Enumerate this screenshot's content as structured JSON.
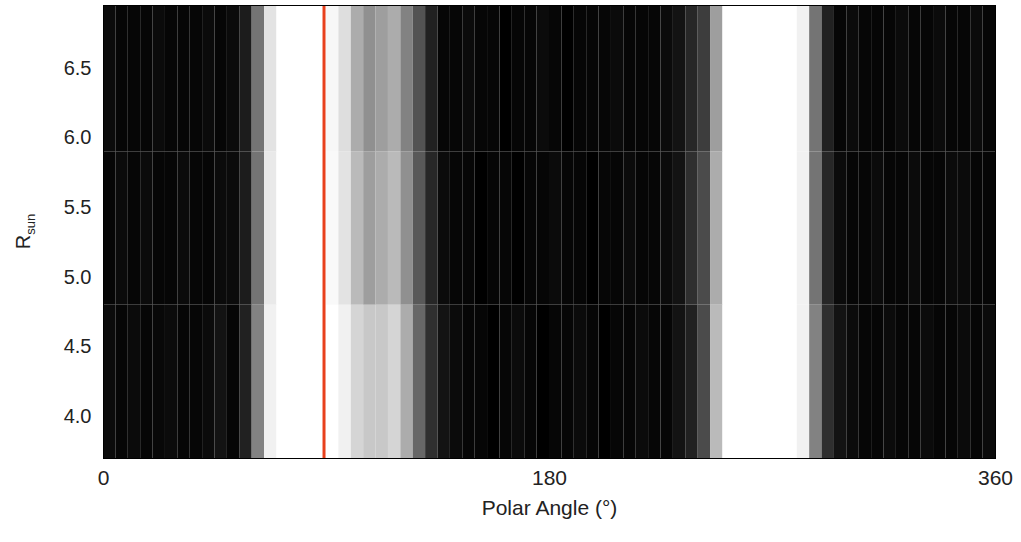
{
  "chart_data": {
    "type": "heatmap",
    "xlabel": "Polar Angle (°)",
    "ylabel": "Rsun",
    "xlim": [
      0,
      360
    ],
    "ylim": [
      3.7,
      6.95
    ],
    "xticks": [
      0,
      180,
      360
    ],
    "yticks": [
      {
        "value": 4,
        "label": "4.0"
      },
      4.5,
      {
        "value": 5,
        "label": "5.0"
      },
      5.5,
      {
        "value": 6,
        "label": "6.0"
      },
      6.5
    ],
    "x_bins": [
      0,
      5,
      10,
      15,
      20,
      25,
      30,
      35,
      40,
      45,
      50,
      55,
      60,
      65,
      70,
      75,
      80,
      85,
      90,
      95,
      100,
      105,
      110,
      115,
      120,
      125,
      130,
      135,
      140,
      145,
      150,
      155,
      160,
      165,
      170,
      175,
      180,
      185,
      190,
      195,
      200,
      205,
      210,
      215,
      220,
      225,
      230,
      235,
      240,
      245,
      250,
      255,
      260,
      265,
      270,
      275,
      280,
      285,
      290,
      295,
      300,
      305,
      310,
      315,
      320,
      325,
      330,
      335,
      340,
      345,
      350,
      355,
      360
    ],
    "y_bins": [
      3.7,
      4.8,
      5.9,
      6.95
    ],
    "cells": [
      [
        0.12,
        0.1,
        0.12,
        0.1,
        0.11,
        0.12,
        0.1,
        0.1,
        0.12,
        0.15,
        0.1,
        0.2,
        0.55,
        0.95,
        1,
        1,
        1,
        1,
        1,
        0.95,
        0.85,
        0.8,
        0.8,
        0.85,
        0.7,
        0.45,
        0.25,
        0.15,
        0.12,
        0.1,
        0.1,
        0.08,
        0.1,
        0.12,
        0.1,
        0.08,
        0.1,
        0.1,
        0.12,
        0.1,
        0.08,
        0.1,
        0.1,
        0.12,
        0.1,
        0.1,
        0.15,
        0.2,
        0.35,
        0.75,
        1,
        1,
        1,
        1,
        1,
        1,
        0.95,
        0.55,
        0.25,
        0.15,
        0.12,
        0.1,
        0.1,
        0.12,
        0.1,
        0.1,
        0.12,
        0.1,
        0.1,
        0.12,
        0.1,
        0.12
      ],
      [
        0.1,
        0.12,
        0.1,
        0.12,
        0.1,
        0.1,
        0.12,
        0.1,
        0.1,
        0.12,
        0.12,
        0.18,
        0.5,
        0.92,
        1,
        1,
        1,
        1,
        0.98,
        0.9,
        0.75,
        0.65,
        0.7,
        0.75,
        0.6,
        0.4,
        0.22,
        0.12,
        0.1,
        0.1,
        0.08,
        0.1,
        0.1,
        0.08,
        0.1,
        0.1,
        0.12,
        0.1,
        0.1,
        0.08,
        0.1,
        0.1,
        0.12,
        0.1,
        0.1,
        0.12,
        0.15,
        0.25,
        0.35,
        0.7,
        1,
        1,
        1,
        1,
        1,
        1,
        0.95,
        0.5,
        0.22,
        0.12,
        0.1,
        0.1,
        0.12,
        0.1,
        0.1,
        0.12,
        0.1,
        0.1,
        0.12,
        0.12,
        0.1,
        0.1
      ],
      [
        0.12,
        0.1,
        0.1,
        0.1,
        0.12,
        0.1,
        0.1,
        0.1,
        0.12,
        0.1,
        0.12,
        0.18,
        0.5,
        0.9,
        1,
        1,
        1,
        1,
        0.97,
        0.88,
        0.7,
        0.6,
        0.65,
        0.7,
        0.55,
        0.38,
        0.2,
        0.1,
        0.1,
        0.12,
        0.1,
        0.1,
        0.08,
        0.1,
        0.1,
        0.12,
        0.1,
        0.08,
        0.1,
        0.1,
        0.1,
        0.12,
        0.1,
        0.1,
        0.1,
        0.12,
        0.15,
        0.22,
        0.3,
        0.65,
        1,
        1,
        1,
        1,
        1,
        1,
        0.95,
        0.5,
        0.2,
        0.1,
        0.12,
        0.1,
        0.1,
        0.1,
        0.12,
        0.1,
        0.1,
        0.12,
        0.1,
        0.1,
        0.12,
        0.1
      ]
    ],
    "reference_line": {
      "x": 89,
      "color": "#e8401c"
    }
  }
}
